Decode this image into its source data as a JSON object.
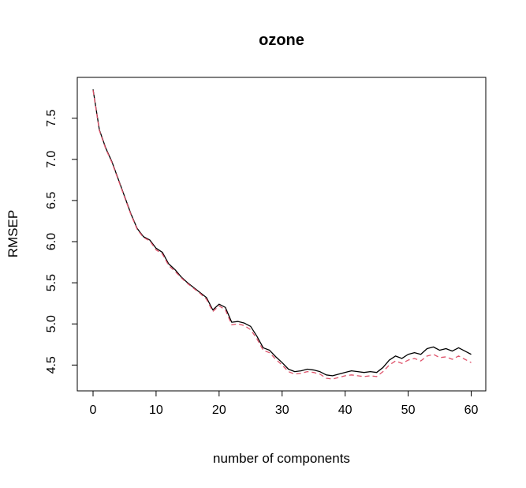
{
  "chart_data": {
    "type": "line",
    "title": "ozone",
    "xlabel": "number of components",
    "ylabel": "RMSEP",
    "xlim": [
      0,
      60
    ],
    "ylim": [
      4.35,
      7.8
    ],
    "x_ticks": [
      "0",
      "10",
      "20",
      "30",
      "40",
      "50",
      "60"
    ],
    "y_ticks": [
      "4.5",
      "5.0",
      "5.5",
      "6.0",
      "6.5",
      "7.0",
      "7.5"
    ],
    "grid": false,
    "legend": "none",
    "series": [
      {
        "color": "#000000",
        "dash": "solid",
        "x": [
          0,
          1,
          2,
          3,
          4,
          5,
          6,
          7,
          8,
          9,
          10,
          11,
          12,
          13,
          14,
          15,
          16,
          17,
          18,
          19,
          20,
          21,
          22,
          23,
          24,
          25,
          26,
          27,
          28,
          29,
          30,
          31,
          32,
          33,
          34,
          35,
          36,
          37,
          38,
          39,
          40,
          41,
          42,
          43,
          44,
          45,
          46,
          47,
          48,
          49,
          50,
          51,
          52,
          53,
          54,
          55,
          56,
          57,
          58,
          59,
          60
        ],
        "values": [
          7.85,
          7.36,
          7.14,
          6.97,
          6.76,
          6.55,
          6.34,
          6.16,
          6.06,
          6.02,
          5.92,
          5.87,
          5.73,
          5.66,
          5.57,
          5.5,
          5.44,
          5.38,
          5.32,
          5.17,
          5.24,
          5.2,
          5.02,
          5.03,
          5.01,
          4.97,
          4.85,
          4.71,
          4.68,
          4.6,
          4.53,
          4.45,
          4.42,
          4.43,
          4.45,
          4.44,
          4.42,
          4.38,
          4.37,
          4.39,
          4.41,
          4.43,
          4.42,
          4.41,
          4.42,
          4.41,
          4.47,
          4.56,
          4.61,
          4.58,
          4.63,
          4.65,
          4.63,
          4.7,
          4.72,
          4.68,
          4.7,
          4.67,
          4.71,
          4.67,
          4.63
        ]
      },
      {
        "color": "#DF536B",
        "dash": "dashed",
        "x": [
          0,
          1,
          2,
          3,
          4,
          5,
          6,
          7,
          8,
          9,
          10,
          11,
          12,
          13,
          14,
          15,
          16,
          17,
          18,
          19,
          20,
          21,
          22,
          23,
          24,
          25,
          26,
          27,
          28,
          29,
          30,
          31,
          32,
          33,
          34,
          35,
          36,
          37,
          38,
          39,
          40,
          41,
          42,
          43,
          44,
          45,
          46,
          47,
          48,
          49,
          50,
          51,
          52,
          53,
          54,
          55,
          56,
          57,
          58,
          59,
          60
        ],
        "values": [
          7.84,
          7.35,
          7.13,
          6.96,
          6.75,
          6.54,
          6.33,
          6.15,
          6.05,
          6.01,
          5.9,
          5.85,
          5.71,
          5.64,
          5.56,
          5.49,
          5.43,
          5.37,
          5.3,
          5.15,
          5.22,
          5.17,
          4.99,
          5.0,
          4.98,
          4.93,
          4.82,
          4.68,
          4.65,
          4.57,
          4.5,
          4.42,
          4.39,
          4.4,
          4.42,
          4.41,
          4.39,
          4.34,
          4.33,
          4.35,
          4.37,
          4.38,
          4.37,
          4.36,
          4.37,
          4.36,
          4.42,
          4.5,
          4.55,
          4.52,
          4.56,
          4.58,
          4.55,
          4.61,
          4.63,
          4.59,
          4.6,
          4.57,
          4.61,
          4.57,
          4.53
        ]
      }
    ]
  }
}
